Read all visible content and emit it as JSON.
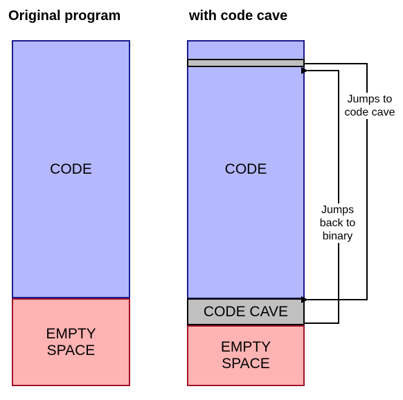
{
  "left": {
    "title": "Original program",
    "code_label": "CODE",
    "empty_label_line1": "EMPTY",
    "empty_label_line2": "SPACE"
  },
  "right": {
    "title": "with code cave",
    "code_label": "CODE",
    "cave_label": "CODE CAVE",
    "empty_label_line1": "EMPTY",
    "empty_label_line2": "SPACE"
  },
  "arrows": {
    "jump_to_line1": "Jumps to",
    "jump_to_line2": "code cave",
    "jump_back_line1": "Jumps",
    "jump_back_line2": "back to",
    "jump_back_line3": "binary"
  },
  "colors": {
    "code_fill": "#b3b8ff",
    "empty_fill": "#ffb3b3",
    "cave_fill": "#c0c0c0"
  }
}
